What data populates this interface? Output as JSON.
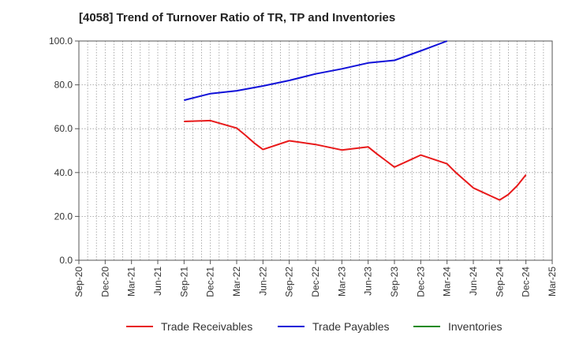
{
  "chart_data": {
    "type": "line",
    "title": "[4058]  Trend of Turnover Ratio of TR, TP and Inventories",
    "xlabel": "",
    "ylabel": "",
    "ylim": [
      0,
      100
    ],
    "yticks": [
      "0.0",
      "20.0",
      "40.0",
      "60.0",
      "80.0",
      "100.0"
    ],
    "xtick_labels": [
      "Sep-20",
      "Dec-20",
      "Mar-21",
      "Jun-21",
      "Sep-21",
      "Dec-21",
      "Mar-22",
      "Jun-22",
      "Sep-22",
      "Dec-22",
      "Mar-23",
      "Jun-23",
      "Sep-23",
      "Dec-23",
      "Mar-24",
      "Jun-24",
      "Sep-24",
      "Dec-24",
      "Mar-25"
    ],
    "x_start": "Sep-20",
    "x_end": "Mar-25",
    "grid": true,
    "legend_position": "bottom",
    "series": [
      {
        "name": "Trade Receivables",
        "color": "#e8191a",
        "points": [
          [
            "Sep-21",
            63.3
          ],
          [
            "Dec-21",
            63.7
          ],
          [
            "Mar-22",
            60.3
          ],
          [
            "Apr-22",
            57.0
          ],
          [
            "May-22",
            53.5
          ],
          [
            "Jun-22",
            50.5
          ],
          [
            "Sep-22",
            54.5
          ],
          [
            "Dec-22",
            52.8
          ],
          [
            "Mar-23",
            50.3
          ],
          [
            "Jun-23",
            51.7
          ],
          [
            "Jul-23",
            48.5
          ],
          [
            "Aug-23",
            45.5
          ],
          [
            "Sep-23",
            42.5
          ],
          [
            "Dec-23",
            48.0
          ],
          [
            "Mar-24",
            44.0
          ],
          [
            "Apr-24",
            40.0
          ],
          [
            "May-24",
            36.5
          ],
          [
            "Jun-24",
            33.0
          ],
          [
            "Sep-24",
            27.5
          ],
          [
            "Oct-24",
            30.0
          ],
          [
            "Nov-24",
            34.0
          ],
          [
            "Dec-24",
            39.0
          ]
        ]
      },
      {
        "name": "Trade Payables",
        "color": "#1010d8",
        "points": [
          [
            "Sep-21",
            73.0
          ],
          [
            "Dec-21",
            76.0
          ],
          [
            "Mar-22",
            77.3
          ],
          [
            "Jun-22",
            79.5
          ],
          [
            "Sep-22",
            82.0
          ],
          [
            "Dec-22",
            85.0
          ],
          [
            "Mar-23",
            87.3
          ],
          [
            "Jun-23",
            90.0
          ],
          [
            "Sep-23",
            91.2
          ],
          [
            "Dec-23",
            95.5
          ],
          [
            "Mar-24",
            100.0
          ]
        ]
      },
      {
        "name": "Inventories",
        "color": "#1a8a1a",
        "points": []
      }
    ]
  }
}
